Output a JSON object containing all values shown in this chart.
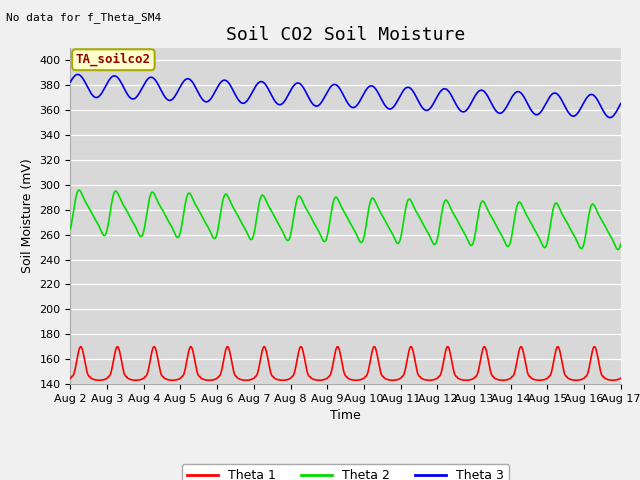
{
  "title": "Soil CO2 Soil Moisture",
  "ylabel": "Soil Moisture (mV)",
  "xlabel": "Time",
  "no_data_text": "No data for f_Theta_SM4",
  "annotation_text": "TA_soilco2",
  "ylim": [
    140,
    410
  ],
  "x_tick_labels": [
    "Aug 2",
    "Aug 3",
    "Aug 4",
    "Aug 5",
    "Aug 6",
    "Aug 7",
    "Aug 8",
    "Aug 9",
    "Aug 10",
    "Aug 11",
    "Aug 12",
    "Aug 13",
    "Aug 14",
    "Aug 15",
    "Aug 16",
    "Aug 17"
  ],
  "num_days": 15,
  "theta1_color": "#ff0000",
  "theta2_color": "#00dd00",
  "theta3_color": "#0000ee",
  "background_color": "#d8d8d8",
  "fig_facecolor": "#f0f0f0",
  "legend_labels": [
    "Theta 1",
    "Theta 2",
    "Theta 3"
  ],
  "title_fontsize": 13,
  "tick_fontsize": 8,
  "label_fontsize": 9,
  "no_data_fontsize": 8,
  "annotation_fontsize": 9
}
